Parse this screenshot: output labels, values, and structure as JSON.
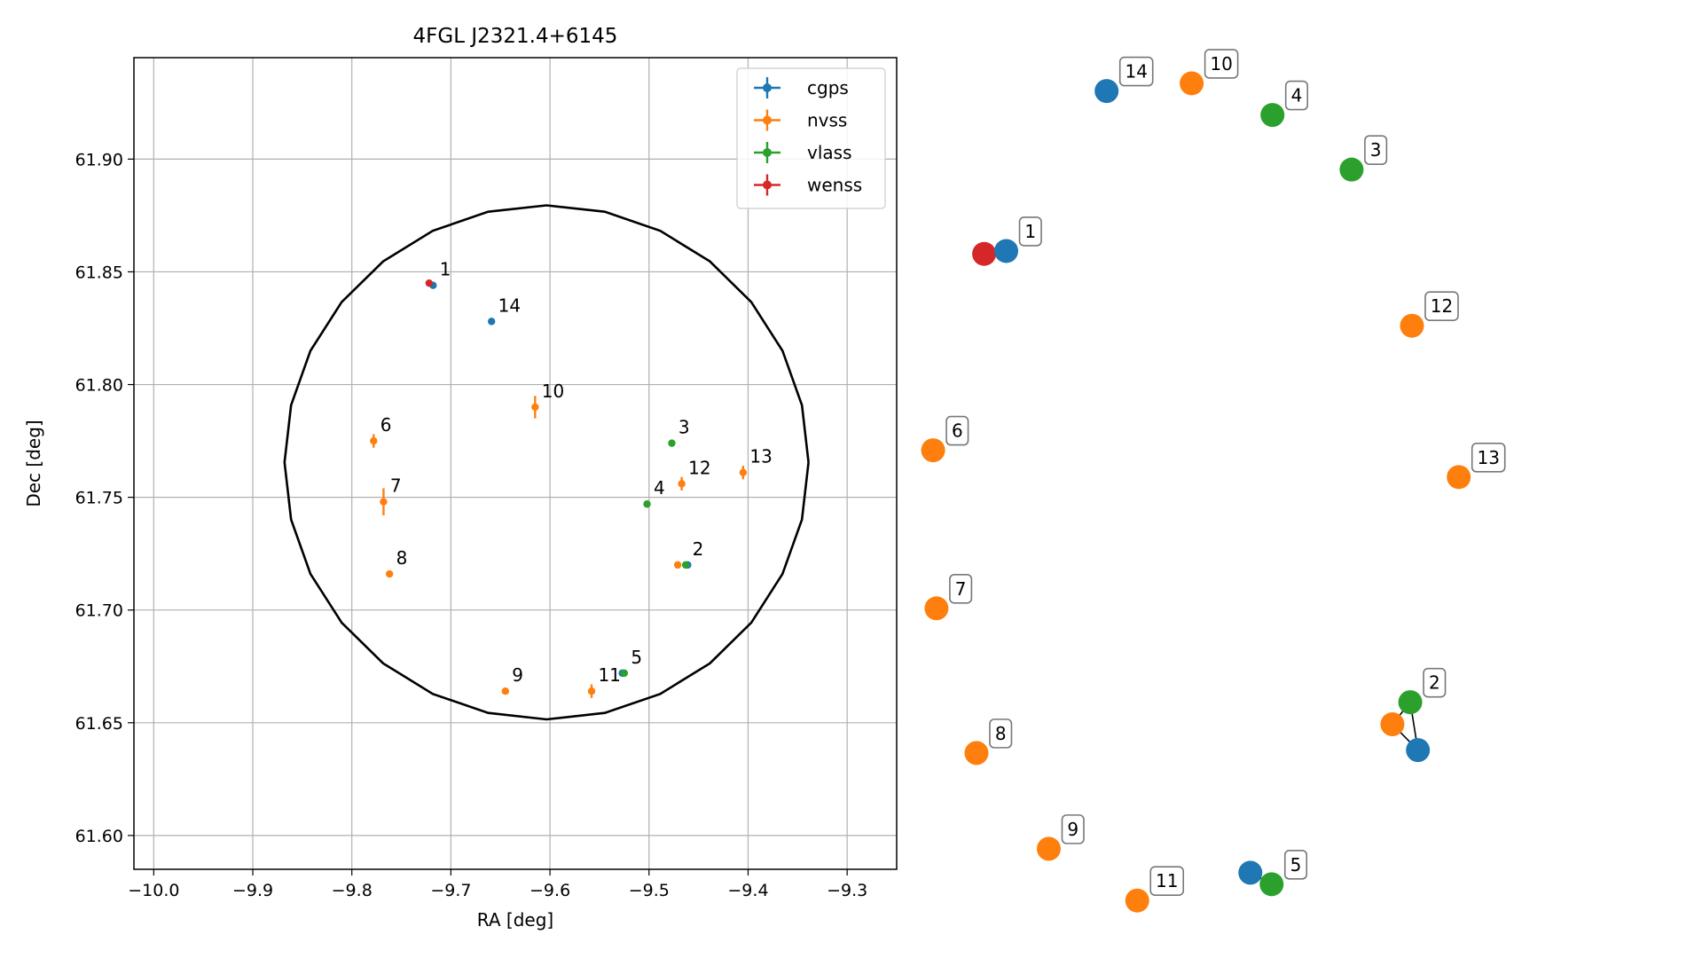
{
  "chart_data": [
    {
      "type": "scatter",
      "title": "4FGL J2321.4+6145",
      "xlabel": "RA [deg]",
      "ylabel": "Dec [deg]",
      "xlim": [
        -10.02,
        -9.25
      ],
      "ylim": [
        61.585,
        61.945
      ],
      "x_ticks": [
        -10.0,
        -9.9,
        -9.8,
        -9.7,
        -9.6,
        -9.5,
        -9.4,
        -9.3
      ],
      "x_tick_labels": [
        "−10.0",
        "−9.9",
        "−9.8",
        "−9.7",
        "−9.6",
        "−9.5",
        "−9.4",
        "−9.3"
      ],
      "y_ticks": [
        61.6,
        61.65,
        61.7,
        61.75,
        61.8,
        61.85,
        61.9
      ],
      "y_tick_labels": [
        "61.60",
        "61.65",
        "61.70",
        "61.75",
        "61.80",
        "61.85",
        "61.90"
      ],
      "grid": true,
      "legend_position": "top-right",
      "ellipse": {
        "center": [
          -9.6035,
          61.7655
        ],
        "semi_axis_ra": 0.2645,
        "semi_axis_dec": 0.114
      },
      "series": [
        {
          "name": "cgps",
          "color": "#1f77b4",
          "points": [
            {
              "label": "1",
              "x": -9.718,
              "y": 61.844
            },
            {
              "label": "14",
              "x": -9.659,
              "y": 61.828
            },
            {
              "label": "",
              "x": -9.461,
              "y": 61.72
            },
            {
              "label": "",
              "x": -9.527,
              "y": 61.672
            }
          ]
        },
        {
          "name": "nvss",
          "color": "#ff7f0e",
          "points": [
            {
              "label": "10",
              "x": -9.615,
              "y": 61.79,
              "yerr": 0.005
            },
            {
              "label": "6",
              "x": -9.778,
              "y": 61.775,
              "yerr": 0.003
            },
            {
              "label": "7",
              "x": -9.768,
              "y": 61.748,
              "yerr": 0.006
            },
            {
              "label": "12",
              "x": -9.467,
              "y": 61.756,
              "yerr": 0.003
            },
            {
              "label": "13",
              "x": -9.405,
              "y": 61.761,
              "yerr": 0.003
            },
            {
              "label": "8",
              "x": -9.762,
              "y": 61.716
            },
            {
              "label": "",
              "x": -9.471,
              "y": 61.72
            },
            {
              "label": "9",
              "x": -9.645,
              "y": 61.664
            },
            {
              "label": "11",
              "x": -9.558,
              "y": 61.664,
              "yerr": 0.003
            }
          ]
        },
        {
          "name": "vlass",
          "color": "#2ca02c",
          "points": [
            {
              "label": "3",
              "x": -9.477,
              "y": 61.774
            },
            {
              "label": "4",
              "x": -9.502,
              "y": 61.747
            },
            {
              "label": "2",
              "x": -9.463,
              "y": 61.72
            },
            {
              "label": "5",
              "x": -9.525,
              "y": 61.672
            }
          ]
        },
        {
          "name": "wenss",
          "color": "#d62728",
          "points": [
            {
              "label": "",
              "x": -9.722,
              "y": 61.845
            }
          ]
        }
      ],
      "annotations": [
        {
          "text": "1",
          "x": -9.714,
          "y": 61.846
        },
        {
          "text": "14",
          "x": -9.655,
          "y": 61.83
        },
        {
          "text": "10",
          "x": -9.611,
          "y": 61.792
        },
        {
          "text": "6",
          "x": -9.774,
          "y": 61.777
        },
        {
          "text": "7",
          "x": -9.764,
          "y": 61.75
        },
        {
          "text": "3",
          "x": -9.473,
          "y": 61.776
        },
        {
          "text": "12",
          "x": -9.463,
          "y": 61.758
        },
        {
          "text": "13",
          "x": -9.401,
          "y": 61.763
        },
        {
          "text": "4",
          "x": -9.498,
          "y": 61.749
        },
        {
          "text": "2",
          "x": -9.459,
          "y": 61.722
        },
        {
          "text": "8",
          "x": -9.758,
          "y": 61.718
        },
        {
          "text": "9",
          "x": -9.641,
          "y": 61.666
        },
        {
          "text": "11",
          "x": -9.554,
          "y": 61.666
        },
        {
          "text": "5",
          "x": -9.521,
          "y": 61.674
        }
      ]
    },
    {
      "type": "network",
      "nodes": [
        {
          "id": "n14",
          "color": "#1f77b4",
          "label": "14",
          "x": 0.3,
          "y": 0.095
        },
        {
          "id": "n10",
          "color": "#ff7f0e",
          "label": "10",
          "x": 0.4,
          "y": 0.087
        },
        {
          "id": "n4",
          "color": "#2ca02c",
          "label": "4",
          "x": 0.495,
          "y": 0.12
        },
        {
          "id": "n3",
          "color": "#2ca02c",
          "label": "3",
          "x": 0.588,
          "y": 0.177
        },
        {
          "id": "n1r",
          "color": "#d62728",
          "label": "",
          "x": 0.156,
          "y": 0.265
        },
        {
          "id": "n1b",
          "color": "#1f77b4",
          "label": "1",
          "x": 0.182,
          "y": 0.262
        },
        {
          "id": "n12",
          "color": "#ff7f0e",
          "label": "12",
          "x": 0.659,
          "y": 0.34
        },
        {
          "id": "n6",
          "color": "#ff7f0e",
          "label": "6",
          "x": 0.096,
          "y": 0.47
        },
        {
          "id": "n13",
          "color": "#ff7f0e",
          "label": "13",
          "x": 0.714,
          "y": 0.498
        },
        {
          "id": "n7",
          "color": "#ff7f0e",
          "label": "7",
          "x": 0.1,
          "y": 0.635
        },
        {
          "id": "n2g",
          "color": "#2ca02c",
          "label": "2",
          "x": 0.657,
          "y": 0.733
        },
        {
          "id": "n2o",
          "color": "#ff7f0e",
          "label": "",
          "x": 0.636,
          "y": 0.756
        },
        {
          "id": "n2b",
          "color": "#1f77b4",
          "label": "",
          "x": 0.666,
          "y": 0.783
        },
        {
          "id": "n8",
          "color": "#ff7f0e",
          "label": "8",
          "x": 0.147,
          "y": 0.786
        },
        {
          "id": "n9",
          "color": "#ff7f0e",
          "label": "9",
          "x": 0.232,
          "y": 0.886
        },
        {
          "id": "n11",
          "color": "#ff7f0e",
          "label": "11",
          "x": 0.336,
          "y": 0.94
        },
        {
          "id": "n5b",
          "color": "#1f77b4",
          "label": "",
          "x": 0.469,
          "y": 0.911
        },
        {
          "id": "n5g",
          "color": "#2ca02c",
          "label": "5",
          "x": 0.494,
          "y": 0.923
        }
      ],
      "edges": [
        [
          "n1r",
          "n1b"
        ],
        [
          "n2o",
          "n2g"
        ],
        [
          "n2g",
          "n2b"
        ],
        [
          "n2o",
          "n2b"
        ],
        [
          "n5b",
          "n5g"
        ]
      ]
    }
  ]
}
